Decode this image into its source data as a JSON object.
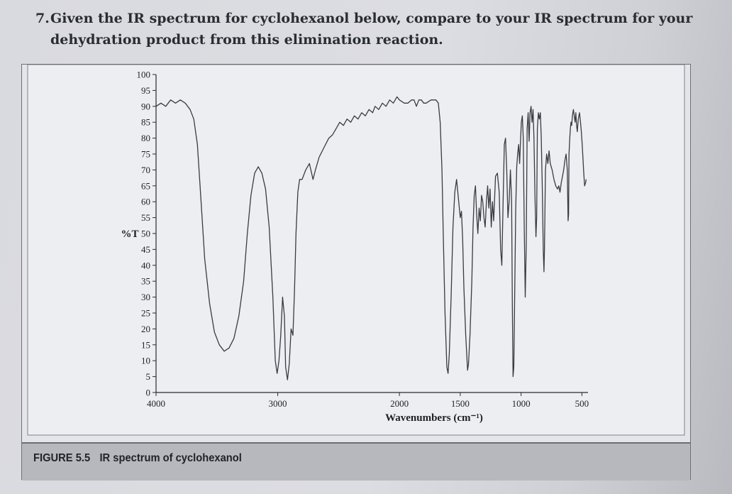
{
  "question": {
    "number": "7.",
    "line1": "Given the IR spectrum for cyclohexanol below, compare to your IR spectrum for your",
    "line2": "dehydration product from this elimination reaction."
  },
  "figure": {
    "caption_label": "FIGURE 5.5",
    "caption_text": "IR spectrum of cyclohexanol"
  },
  "chart_data": {
    "type": "line",
    "title": "",
    "xlabel": "Wavenumbers (cm⁻¹)",
    "ylabel": "%T",
    "xlim": [
      4000,
      450
    ],
    "ylim": [
      0,
      100
    ],
    "x_reversed": true,
    "x_ticks": [
      4000,
      3000,
      2000,
      1500,
      1000,
      500
    ],
    "x_tick_labels": [
      "4000",
      "3000",
      "2000",
      "1500",
      "1000",
      "500"
    ],
    "y_ticks": [
      0,
      5,
      10,
      15,
      20,
      25,
      30,
      35,
      40,
      45,
      50,
      55,
      60,
      65,
      70,
      75,
      80,
      85,
      90,
      95,
      100
    ],
    "y_tick_labels": [
      "0",
      "5",
      "10",
      "15",
      "20",
      "25",
      "30",
      "35",
      "40",
      "45",
      "50",
      "55",
      "60",
      "65",
      "70",
      "75",
      "80",
      "85",
      "90",
      "95",
      "100"
    ],
    "grid": false,
    "series": [
      {
        "color": "#3a3b40",
        "points": [
          [
            4000,
            90
          ],
          [
            3960,
            91
          ],
          [
            3920,
            90
          ],
          [
            3880,
            92
          ],
          [
            3840,
            91
          ],
          [
            3800,
            92
          ],
          [
            3760,
            91
          ],
          [
            3720,
            89
          ],
          [
            3690,
            86
          ],
          [
            3660,
            78
          ],
          [
            3630,
            60
          ],
          [
            3600,
            42
          ],
          [
            3560,
            28
          ],
          [
            3520,
            19
          ],
          [
            3480,
            15
          ],
          [
            3440,
            13
          ],
          [
            3400,
            14
          ],
          [
            3360,
            17
          ],
          [
            3320,
            24
          ],
          [
            3280,
            35
          ],
          [
            3250,
            50
          ],
          [
            3220,
            62
          ],
          [
            3190,
            69
          ],
          [
            3160,
            71
          ],
          [
            3130,
            69
          ],
          [
            3100,
            64
          ],
          [
            3070,
            52
          ],
          [
            3040,
            30
          ],
          [
            3020,
            10
          ],
          [
            3005,
            6
          ],
          [
            2990,
            10
          ],
          [
            2975,
            18
          ],
          [
            2960,
            30
          ],
          [
            2945,
            24
          ],
          [
            2935,
            8
          ],
          [
            2920,
            4
          ],
          [
            2905,
            9
          ],
          [
            2890,
            20
          ],
          [
            2875,
            18
          ],
          [
            2862,
            32
          ],
          [
            2850,
            50
          ],
          [
            2835,
            63
          ],
          [
            2820,
            67
          ],
          [
            2800,
            67
          ],
          [
            2770,
            70
          ],
          [
            2740,
            72
          ],
          [
            2710,
            67
          ],
          [
            2690,
            70
          ],
          [
            2660,
            74
          ],
          [
            2620,
            77
          ],
          [
            2580,
            80
          ],
          [
            2550,
            81
          ],
          [
            2520,
            83
          ],
          [
            2490,
            85
          ],
          [
            2460,
            84
          ],
          [
            2430,
            86
          ],
          [
            2400,
            85
          ],
          [
            2370,
            87
          ],
          [
            2340,
            86
          ],
          [
            2310,
            88
          ],
          [
            2280,
            87
          ],
          [
            2250,
            89
          ],
          [
            2220,
            88
          ],
          [
            2200,
            90
          ],
          [
            2170,
            89
          ],
          [
            2140,
            91
          ],
          [
            2110,
            90
          ],
          [
            2080,
            92
          ],
          [
            2050,
            91
          ],
          [
            2020,
            93
          ],
          [
            2000,
            92
          ],
          [
            1960,
            91
          ],
          [
            1930,
            91
          ],
          [
            1900,
            92
          ],
          [
            1880,
            92
          ],
          [
            1860,
            90
          ],
          [
            1840,
            92
          ],
          [
            1820,
            92
          ],
          [
            1800,
            91
          ],
          [
            1780,
            91
          ],
          [
            1740,
            92
          ],
          [
            1700,
            92
          ],
          [
            1680,
            91
          ],
          [
            1665,
            85
          ],
          [
            1650,
            70
          ],
          [
            1640,
            50
          ],
          [
            1625,
            25
          ],
          [
            1610,
            8
          ],
          [
            1600,
            6
          ],
          [
            1590,
            12
          ],
          [
            1575,
            30
          ],
          [
            1560,
            52
          ],
          [
            1545,
            63
          ],
          [
            1530,
            67
          ],
          [
            1515,
            61
          ],
          [
            1500,
            55
          ],
          [
            1490,
            57
          ],
          [
            1480,
            48
          ],
          [
            1470,
            33
          ],
          [
            1455,
            18
          ],
          [
            1440,
            7
          ],
          [
            1432,
            9
          ],
          [
            1420,
            18
          ],
          [
            1405,
            35
          ],
          [
            1395,
            52
          ],
          [
            1385,
            62
          ],
          [
            1375,
            65
          ],
          [
            1365,
            56
          ],
          [
            1355,
            50
          ],
          [
            1345,
            58
          ],
          [
            1335,
            54
          ],
          [
            1325,
            62
          ],
          [
            1315,
            60
          ],
          [
            1305,
            55
          ],
          [
            1295,
            52
          ],
          [
            1285,
            60
          ],
          [
            1275,
            65
          ],
          [
            1265,
            58
          ],
          [
            1255,
            64
          ],
          [
            1245,
            52
          ],
          [
            1235,
            60
          ],
          [
            1225,
            54
          ],
          [
            1210,
            68
          ],
          [
            1195,
            69
          ],
          [
            1180,
            63
          ],
          [
            1168,
            45
          ],
          [
            1158,
            40
          ],
          [
            1148,
            60
          ],
          [
            1138,
            78
          ],
          [
            1128,
            80
          ],
          [
            1118,
            70
          ],
          [
            1108,
            55
          ],
          [
            1098,
            60
          ],
          [
            1088,
            70
          ],
          [
            1078,
            60
          ],
          [
            1072,
            28
          ],
          [
            1066,
            5
          ],
          [
            1060,
            8
          ],
          [
            1052,
            32
          ],
          [
            1044,
            58
          ],
          [
            1036,
            71
          ],
          [
            1028,
            75
          ],
          [
            1020,
            78
          ],
          [
            1012,
            72
          ],
          [
            1004,
            80
          ],
          [
            998,
            85
          ],
          [
            990,
            87
          ],
          [
            982,
            80
          ],
          [
            974,
            52
          ],
          [
            966,
            30
          ],
          [
            958,
            46
          ],
          [
            950,
            83
          ],
          [
            942,
            88
          ],
          [
            934,
            79
          ],
          [
            926,
            88
          ],
          [
            918,
            90
          ],
          [
            910,
            85
          ],
          [
            902,
            89
          ],
          [
            894,
            80
          ],
          [
            886,
            62
          ],
          [
            878,
            49
          ],
          [
            872,
            55
          ],
          [
            866,
            83
          ],
          [
            858,
            88
          ],
          [
            850,
            86
          ],
          [
            842,
            88
          ],
          [
            834,
            80
          ],
          [
            826,
            65
          ],
          [
            818,
            45
          ],
          [
            812,
            38
          ],
          [
            808,
            45
          ],
          [
            800,
            70
          ],
          [
            790,
            75
          ],
          [
            780,
            72
          ],
          [
            770,
            76
          ],
          [
            760,
            72
          ],
          [
            745,
            70
          ],
          [
            730,
            67
          ],
          [
            715,
            65
          ],
          [
            700,
            64
          ],
          [
            690,
            65
          ],
          [
            680,
            63
          ],
          [
            670,
            66
          ],
          [
            660,
            68
          ],
          [
            650,
            70
          ],
          [
            640,
            73
          ],
          [
            630,
            75
          ],
          [
            620,
            70
          ],
          [
            614,
            54
          ],
          [
            610,
            56
          ],
          [
            606,
            75
          ],
          [
            600,
            80
          ],
          [
            595,
            83
          ],
          [
            590,
            85
          ],
          [
            584,
            84
          ],
          [
            578,
            87
          ],
          [
            570,
            89
          ],
          [
            563,
            87
          ],
          [
            556,
            85
          ],
          [
            550,
            88
          ],
          [
            544,
            84
          ],
          [
            538,
            82
          ],
          [
            530,
            86
          ],
          [
            520,
            88
          ],
          [
            512,
            85
          ],
          [
            505,
            82
          ],
          [
            498,
            78
          ],
          [
            492,
            74
          ],
          [
            485,
            69
          ],
          [
            478,
            65
          ],
          [
            470,
            66
          ],
          [
            465,
            67
          ]
        ]
      }
    ]
  }
}
